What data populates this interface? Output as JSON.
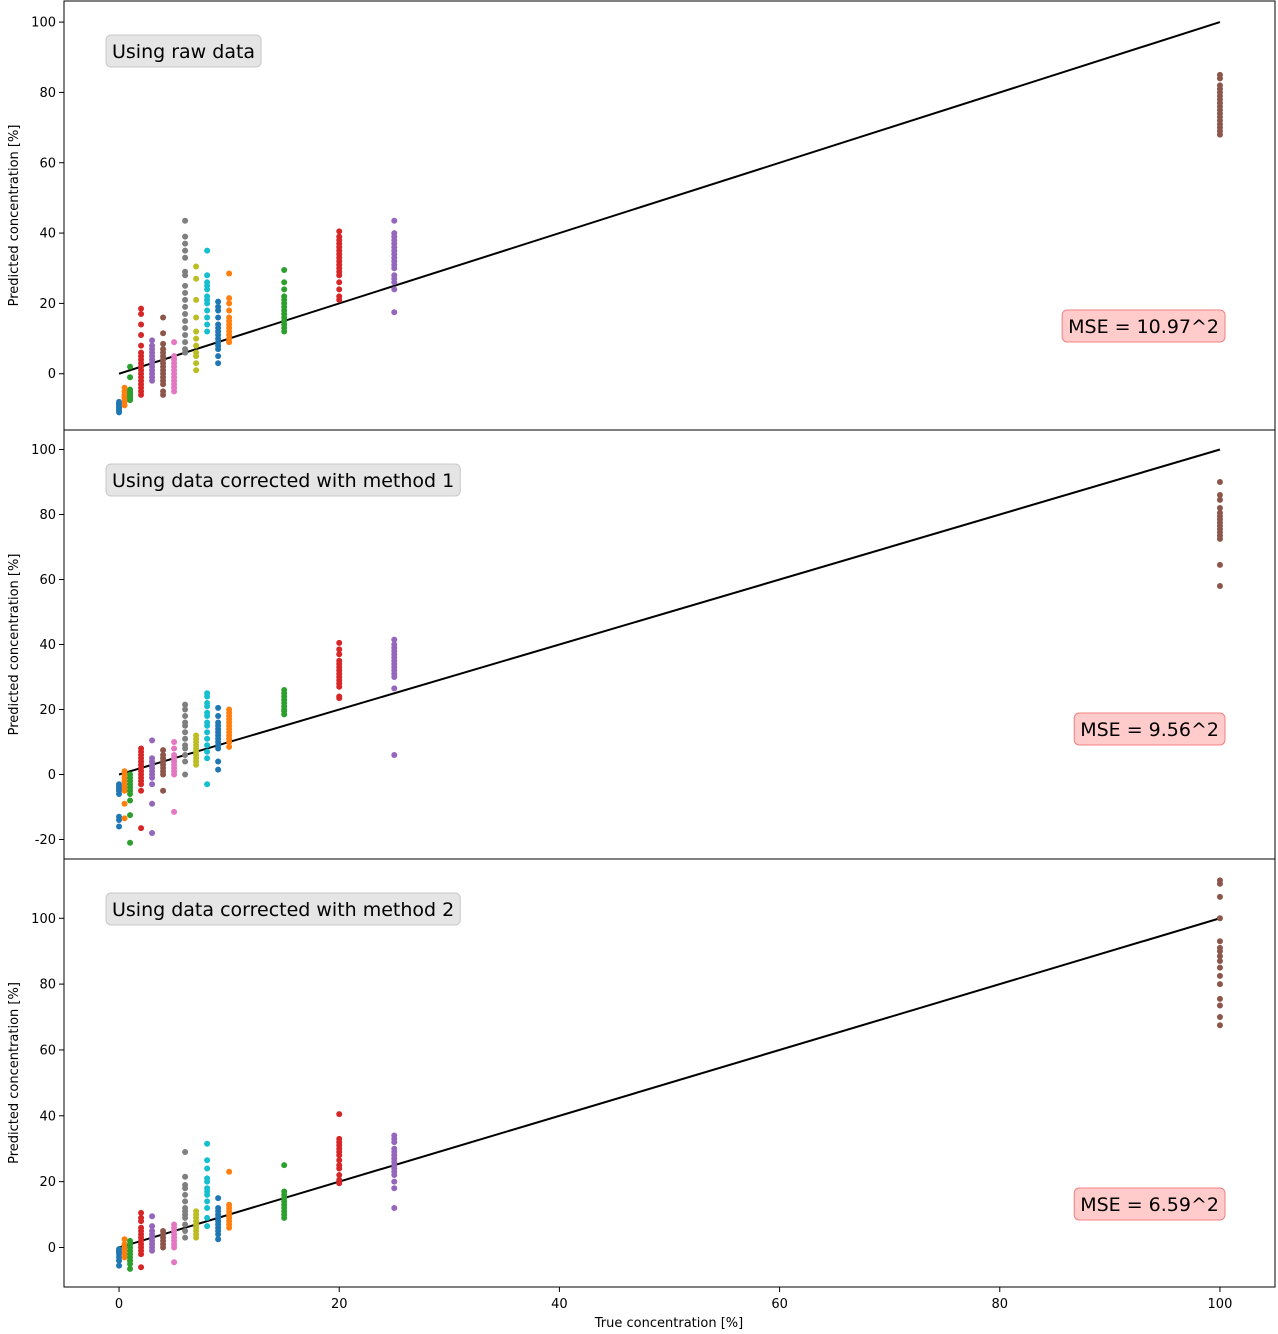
{
  "figure": {
    "xlabel": "True concentration [%]",
    "ylabel": "Predicted concentration [%]"
  },
  "chart_data": [
    {
      "type": "scatter",
      "title": "Using raw data",
      "annotation": "MSE = 10.97^2",
      "xlabel": "",
      "ylabel": "Predicted concentration [%]",
      "xlim": [
        -5,
        105
      ],
      "ylim": [
        -16,
        106
      ],
      "yticks": [
        0,
        20,
        40,
        60,
        80,
        100
      ],
      "reference_line": {
        "x": [
          0,
          100
        ],
        "y": [
          0,
          100
        ]
      },
      "groups": [
        {
          "x": 0,
          "color": "#1f77b4",
          "values": [
            -11,
            -10.5,
            -10,
            -9.5,
            -9,
            -8.5,
            -8
          ]
        },
        {
          "x": 0.5,
          "color": "#ff7f0e",
          "values": [
            -9,
            -8,
            -7,
            -6.5,
            -6,
            -5,
            -4
          ]
        },
        {
          "x": 1,
          "color": "#2ca02c",
          "values": [
            -7.5,
            -7,
            -6.5,
            -6,
            -5.5,
            -5,
            -4.5,
            -1,
            2
          ]
        },
        {
          "x": 2,
          "color": "#d62728",
          "values": [
            -6,
            -5,
            -4,
            -3,
            -2,
            -1,
            0,
            1,
            2,
            3,
            4,
            5,
            6,
            8,
            11,
            14,
            17,
            18.5
          ]
        },
        {
          "x": 3,
          "color": "#9467bd",
          "values": [
            -2,
            -1,
            0,
            1,
            2,
            3,
            4,
            5,
            6,
            7,
            8,
            9.5
          ]
        },
        {
          "x": 4,
          "color": "#8c564b",
          "values": [
            -6,
            -5,
            -3,
            -2,
            -1,
            0,
            1,
            2,
            3,
            4,
            5,
            6,
            7,
            8.5,
            11.5,
            16
          ]
        },
        {
          "x": 5,
          "color": "#e377c2",
          "values": [
            -5,
            -4,
            -3,
            -2,
            -1,
            0,
            1,
            2,
            3,
            4,
            5,
            9
          ]
        },
        {
          "x": 6,
          "color": "#7f7f7f",
          "values": [
            6,
            7,
            9,
            11,
            13,
            15,
            17,
            19,
            21,
            23,
            25,
            28,
            29,
            33,
            35,
            37,
            39,
            43.5
          ]
        },
        {
          "x": 7,
          "color": "#bcbd22",
          "values": [
            1,
            3,
            5,
            6,
            8,
            10,
            12,
            16,
            21,
            27,
            30.5
          ]
        },
        {
          "x": 8,
          "color": "#17becf",
          "values": [
            12,
            14,
            16,
            18,
            20,
            21,
            22,
            24,
            25,
            26,
            28,
            35
          ]
        },
        {
          "x": 9,
          "color": "#1f77b4",
          "values": [
            3,
            5,
            7,
            8,
            9,
            10,
            11,
            12,
            13,
            14,
            16,
            18,
            19,
            20.5
          ]
        },
        {
          "x": 10,
          "color": "#ff7f0e",
          "values": [
            9,
            10,
            11,
            12,
            13,
            14,
            15,
            16,
            18,
            20,
            21.5,
            28.5
          ]
        },
        {
          "x": 15,
          "color": "#2ca02c",
          "values": [
            12,
            13,
            14,
            15,
            16,
            17,
            18,
            19,
            20,
            21,
            22,
            24,
            26,
            29.5
          ]
        },
        {
          "x": 20,
          "color": "#d62728",
          "values": [
            21,
            22,
            24,
            26,
            28,
            29,
            30,
            31,
            32,
            33,
            34,
            35,
            36,
            37,
            38,
            39,
            40.5
          ]
        },
        {
          "x": 25,
          "color": "#9467bd",
          "values": [
            17.5,
            24,
            26,
            27,
            28,
            30,
            31,
            32,
            33,
            34,
            35,
            36,
            37,
            38,
            39,
            40,
            43.5
          ]
        },
        {
          "x": 100,
          "color": "#8c564b",
          "values": [
            68,
            69,
            70,
            71,
            72,
            73,
            74,
            75,
            76,
            77,
            78,
            79,
            80,
            81,
            82,
            84,
            85
          ]
        }
      ]
    },
    {
      "type": "scatter",
      "title": "Using data corrected with method 1",
      "annotation": "MSE = 9.56^2",
      "xlabel": "",
      "ylabel": "Predicted concentration [%]",
      "xlim": [
        -5,
        105
      ],
      "ylim": [
        -26,
        106
      ],
      "yticks": [
        -20,
        0,
        20,
        40,
        60,
        80,
        100
      ],
      "reference_line": {
        "x": [
          0,
          100
        ],
        "y": [
          0,
          100
        ]
      },
      "groups": [
        {
          "x": 0,
          "color": "#1f77b4",
          "values": [
            -16,
            -14,
            -13,
            -6,
            -5,
            -4.5,
            -4,
            -3.5,
            -3
          ]
        },
        {
          "x": 0.5,
          "color": "#ff7f0e",
          "values": [
            -13.5,
            -9,
            -5,
            -4,
            -3,
            -2,
            -1,
            0,
            1
          ]
        },
        {
          "x": 1,
          "color": "#2ca02c",
          "values": [
            -21,
            -12.5,
            -8,
            -6,
            -5,
            -4,
            -3,
            -2,
            -1,
            0
          ]
        },
        {
          "x": 2,
          "color": "#d62728",
          "values": [
            -16.5,
            -5,
            -3,
            -2,
            -1,
            0,
            1,
            2,
            3,
            4,
            5,
            6,
            7,
            8
          ]
        },
        {
          "x": 3,
          "color": "#9467bd",
          "values": [
            -18,
            -9,
            -3,
            -1,
            0,
            1,
            2,
            3,
            4,
            5,
            10.5
          ]
        },
        {
          "x": 4,
          "color": "#8c564b",
          "values": [
            -5,
            0,
            1,
            2,
            3,
            4,
            5,
            6,
            7.5
          ]
        },
        {
          "x": 5,
          "color": "#e377c2",
          "values": [
            -11.5,
            0,
            1,
            2,
            3,
            4,
            5,
            6,
            8,
            10
          ]
        },
        {
          "x": 6,
          "color": "#7f7f7f",
          "values": [
            0,
            4,
            6,
            8,
            9,
            11,
            13,
            15,
            16,
            18,
            20,
            21.5
          ]
        },
        {
          "x": 7,
          "color": "#bcbd22",
          "values": [
            3,
            4,
            5,
            6,
            7,
            8,
            9,
            10,
            11,
            12
          ]
        },
        {
          "x": 8,
          "color": "#17becf",
          "values": [
            -3,
            5,
            7,
            9,
            11,
            13,
            15,
            16,
            18,
            19,
            21,
            22,
            24,
            25
          ]
        },
        {
          "x": 9,
          "color": "#1f77b4",
          "values": [
            1.5,
            4,
            8,
            9,
            10,
            11,
            12,
            13,
            14,
            15,
            16,
            18,
            20.5
          ]
        },
        {
          "x": 10,
          "color": "#ff7f0e",
          "values": [
            8.5,
            10,
            11,
            12,
            13,
            14,
            15,
            16,
            17,
            18,
            19,
            20
          ]
        },
        {
          "x": 15,
          "color": "#2ca02c",
          "values": [
            18.5,
            19.5,
            20,
            21,
            22,
            23,
            24,
            25,
            26
          ]
        },
        {
          "x": 20,
          "color": "#d62728",
          "values": [
            23.5,
            24,
            27,
            28,
            29,
            30,
            31,
            32,
            33,
            34,
            35,
            37,
            38.5,
            40.5
          ]
        },
        {
          "x": 25,
          "color": "#9467bd",
          "values": [
            6,
            26.5,
            30,
            31,
            32,
            33,
            34,
            35,
            36,
            37,
            38,
            39,
            40,
            41.5
          ]
        },
        {
          "x": 100,
          "color": "#8c564b",
          "values": [
            58,
            64.5,
            72.5,
            73.5,
            74.5,
            75.5,
            76.5,
            77.5,
            78.5,
            79.5,
            80.5,
            82,
            84.5,
            86,
            90
          ]
        }
      ]
    },
    {
      "type": "scatter",
      "title": "Using data corrected with method 2",
      "annotation": "MSE = 6.59^2",
      "xlabel": "True concentration [%]",
      "ylabel": "Predicted concentration [%]",
      "xlim": [
        -5,
        105
      ],
      "ylim": [
        -12,
        118
      ],
      "yticks": [
        0,
        20,
        40,
        60,
        80,
        100
      ],
      "reference_line": {
        "x": [
          0,
          100
        ],
        "y": [
          0,
          100
        ]
      },
      "groups": [
        {
          "x": 0,
          "color": "#1f77b4",
          "values": [
            -5.5,
            -4,
            -3,
            -2,
            -1.5,
            -1,
            -0.5
          ]
        },
        {
          "x": 0.5,
          "color": "#ff7f0e",
          "values": [
            -3,
            -2,
            -1,
            0,
            1,
            2.5
          ]
        },
        {
          "x": 1,
          "color": "#2ca02c",
          "values": [
            -6.5,
            -5,
            -4,
            -3,
            -2,
            -1,
            0,
            1,
            2
          ]
        },
        {
          "x": 2,
          "color": "#d62728",
          "values": [
            -6,
            -2,
            -1,
            0,
            1,
            2,
            3,
            4,
            5,
            6,
            8,
            9,
            10.5
          ]
        },
        {
          "x": 3,
          "color": "#9467bd",
          "values": [
            -1,
            0,
            1,
            2,
            3,
            4,
            5,
            6.5,
            9.5
          ]
        },
        {
          "x": 4,
          "color": "#8c564b",
          "values": [
            0,
            1,
            2,
            3,
            4,
            5
          ]
        },
        {
          "x": 5,
          "color": "#e377c2",
          "values": [
            -4.5,
            0,
            1,
            2,
            3,
            4,
            5,
            6,
            7
          ]
        },
        {
          "x": 6,
          "color": "#7f7f7f",
          "values": [
            3,
            5,
            7,
            9,
            10,
            11,
            12,
            14,
            16,
            18,
            19,
            21.5,
            29
          ]
        },
        {
          "x": 7,
          "color": "#bcbd22",
          "values": [
            3,
            4,
            5,
            6,
            7,
            8,
            9,
            10,
            11
          ]
        },
        {
          "x": 8,
          "color": "#17becf",
          "values": [
            6.5,
            9,
            12,
            14,
            16,
            17,
            18,
            20,
            21,
            24,
            26.5,
            31.5
          ]
        },
        {
          "x": 9,
          "color": "#1f77b4",
          "values": [
            2.5,
            4,
            5,
            6,
            7,
            8,
            9,
            10,
            11,
            12,
            15
          ]
        },
        {
          "x": 10,
          "color": "#ff7f0e",
          "values": [
            6,
            7,
            8,
            9,
            10,
            11,
            12,
            13,
            23
          ]
        },
        {
          "x": 15,
          "color": "#2ca02c",
          "values": [
            9,
            10,
            11,
            12,
            13,
            14,
            15,
            16,
            17,
            25
          ]
        },
        {
          "x": 20,
          "color": "#d62728",
          "values": [
            19.5,
            20.5,
            22,
            24,
            25,
            26.5,
            28,
            29,
            30,
            31,
            32,
            33,
            40.5
          ]
        },
        {
          "x": 25,
          "color": "#9467bd",
          "values": [
            12,
            18,
            20,
            22,
            23,
            24,
            25,
            26,
            27,
            28,
            29,
            30,
            32,
            33,
            34
          ]
        },
        {
          "x": 100,
          "color": "#8c564b",
          "values": [
            67.5,
            70,
            73.5,
            75.5,
            80,
            82.5,
            85,
            87,
            88.5,
            90,
            91,
            93,
            100,
            106.5,
            110.5,
            111.5
          ]
        }
      ]
    }
  ]
}
